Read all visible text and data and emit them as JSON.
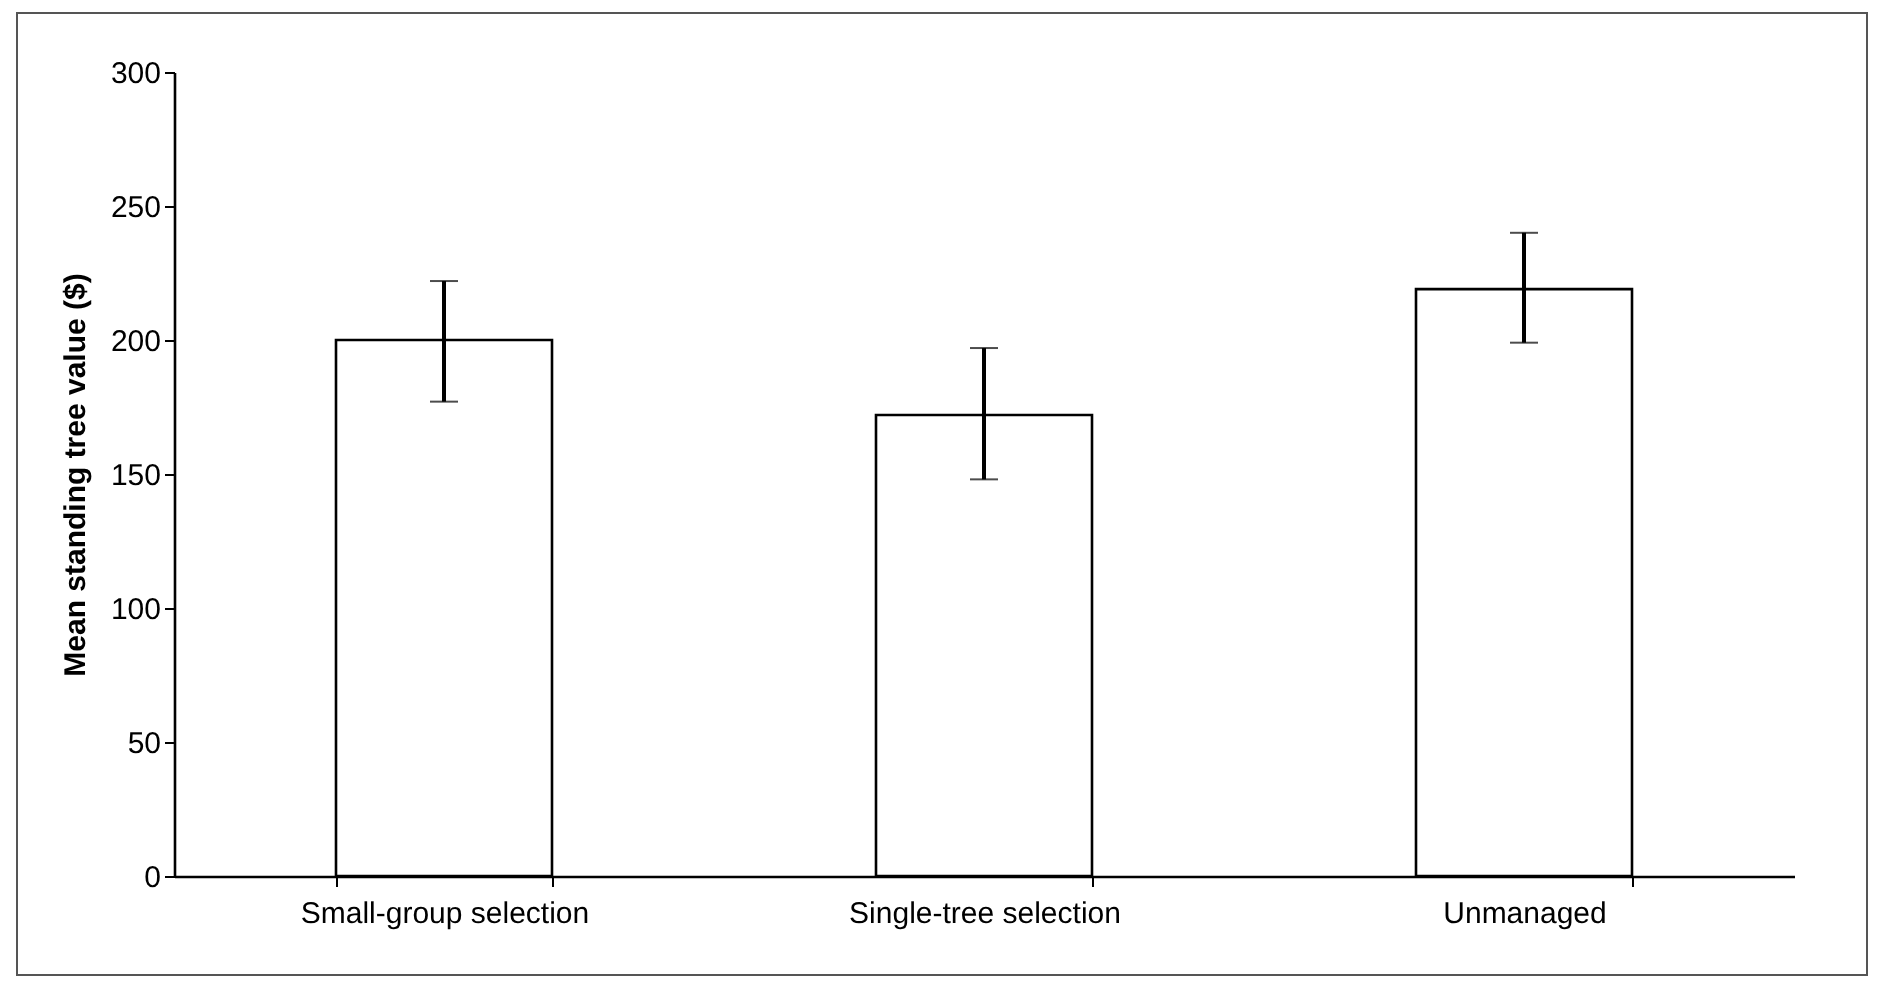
{
  "chart_data": {
    "type": "bar",
    "ylabel": "Mean standing tree value ($)",
    "categories": [
      "Small-group selection",
      "Single-tree selection",
      "Unmanaged"
    ],
    "values": [
      200,
      172,
      219
    ],
    "errors": [
      [
        177,
        222
      ],
      [
        148,
        197
      ],
      [
        199,
        240
      ]
    ],
    "color": "#ffffff",
    "ylim": [
      0,
      300
    ],
    "yticks": [
      0,
      50,
      100,
      150,
      200,
      250,
      300
    ],
    "grid": false
  }
}
